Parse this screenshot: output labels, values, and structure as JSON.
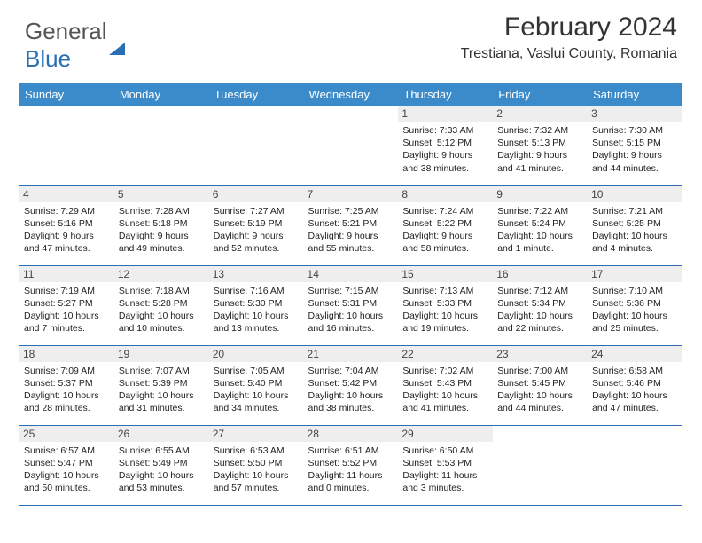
{
  "logo": {
    "part1": "General",
    "part2": "Blue"
  },
  "title": "February 2024",
  "location": "Trestiana, Vaslui County, Romania",
  "colors": {
    "header_bg": "#3b8bca",
    "brand_blue": "#2a6fb5",
    "daynum_bg": "#eeeeee",
    "border": "#2a6fb5",
    "text": "#222222"
  },
  "weekdays": [
    "Sunday",
    "Monday",
    "Tuesday",
    "Wednesday",
    "Thursday",
    "Friday",
    "Saturday"
  ],
  "weeks": [
    [
      {
        "empty": true
      },
      {
        "empty": true
      },
      {
        "empty": true
      },
      {
        "empty": true
      },
      {
        "num": "1",
        "sunrise": "7:33 AM",
        "sunset": "5:12 PM",
        "daylight": "9 hours and 38 minutes."
      },
      {
        "num": "2",
        "sunrise": "7:32 AM",
        "sunset": "5:13 PM",
        "daylight": "9 hours and 41 minutes."
      },
      {
        "num": "3",
        "sunrise": "7:30 AM",
        "sunset": "5:15 PM",
        "daylight": "9 hours and 44 minutes."
      }
    ],
    [
      {
        "num": "4",
        "sunrise": "7:29 AM",
        "sunset": "5:16 PM",
        "daylight": "9 hours and 47 minutes."
      },
      {
        "num": "5",
        "sunrise": "7:28 AM",
        "sunset": "5:18 PM",
        "daylight": "9 hours and 49 minutes."
      },
      {
        "num": "6",
        "sunrise": "7:27 AM",
        "sunset": "5:19 PM",
        "daylight": "9 hours and 52 minutes."
      },
      {
        "num": "7",
        "sunrise": "7:25 AM",
        "sunset": "5:21 PM",
        "daylight": "9 hours and 55 minutes."
      },
      {
        "num": "8",
        "sunrise": "7:24 AM",
        "sunset": "5:22 PM",
        "daylight": "9 hours and 58 minutes."
      },
      {
        "num": "9",
        "sunrise": "7:22 AM",
        "sunset": "5:24 PM",
        "daylight": "10 hours and 1 minute."
      },
      {
        "num": "10",
        "sunrise": "7:21 AM",
        "sunset": "5:25 PM",
        "daylight": "10 hours and 4 minutes."
      }
    ],
    [
      {
        "num": "11",
        "sunrise": "7:19 AM",
        "sunset": "5:27 PM",
        "daylight": "10 hours and 7 minutes."
      },
      {
        "num": "12",
        "sunrise": "7:18 AM",
        "sunset": "5:28 PM",
        "daylight": "10 hours and 10 minutes."
      },
      {
        "num": "13",
        "sunrise": "7:16 AM",
        "sunset": "5:30 PM",
        "daylight": "10 hours and 13 minutes."
      },
      {
        "num": "14",
        "sunrise": "7:15 AM",
        "sunset": "5:31 PM",
        "daylight": "10 hours and 16 minutes."
      },
      {
        "num": "15",
        "sunrise": "7:13 AM",
        "sunset": "5:33 PM",
        "daylight": "10 hours and 19 minutes."
      },
      {
        "num": "16",
        "sunrise": "7:12 AM",
        "sunset": "5:34 PM",
        "daylight": "10 hours and 22 minutes."
      },
      {
        "num": "17",
        "sunrise": "7:10 AM",
        "sunset": "5:36 PM",
        "daylight": "10 hours and 25 minutes."
      }
    ],
    [
      {
        "num": "18",
        "sunrise": "7:09 AM",
        "sunset": "5:37 PM",
        "daylight": "10 hours and 28 minutes."
      },
      {
        "num": "19",
        "sunrise": "7:07 AM",
        "sunset": "5:39 PM",
        "daylight": "10 hours and 31 minutes."
      },
      {
        "num": "20",
        "sunrise": "7:05 AM",
        "sunset": "5:40 PM",
        "daylight": "10 hours and 34 minutes."
      },
      {
        "num": "21",
        "sunrise": "7:04 AM",
        "sunset": "5:42 PM",
        "daylight": "10 hours and 38 minutes."
      },
      {
        "num": "22",
        "sunrise": "7:02 AM",
        "sunset": "5:43 PM",
        "daylight": "10 hours and 41 minutes."
      },
      {
        "num": "23",
        "sunrise": "7:00 AM",
        "sunset": "5:45 PM",
        "daylight": "10 hours and 44 minutes."
      },
      {
        "num": "24",
        "sunrise": "6:58 AM",
        "sunset": "5:46 PM",
        "daylight": "10 hours and 47 minutes."
      }
    ],
    [
      {
        "num": "25",
        "sunrise": "6:57 AM",
        "sunset": "5:47 PM",
        "daylight": "10 hours and 50 minutes."
      },
      {
        "num": "26",
        "sunrise": "6:55 AM",
        "sunset": "5:49 PM",
        "daylight": "10 hours and 53 minutes."
      },
      {
        "num": "27",
        "sunrise": "6:53 AM",
        "sunset": "5:50 PM",
        "daylight": "10 hours and 57 minutes."
      },
      {
        "num": "28",
        "sunrise": "6:51 AM",
        "sunset": "5:52 PM",
        "daylight": "11 hours and 0 minutes."
      },
      {
        "num": "29",
        "sunrise": "6:50 AM",
        "sunset": "5:53 PM",
        "daylight": "11 hours and 3 minutes."
      },
      {
        "empty": true
      },
      {
        "empty": true
      }
    ]
  ],
  "labels": {
    "sunrise": "Sunrise: ",
    "sunset": "Sunset: ",
    "daylight": "Daylight: "
  }
}
